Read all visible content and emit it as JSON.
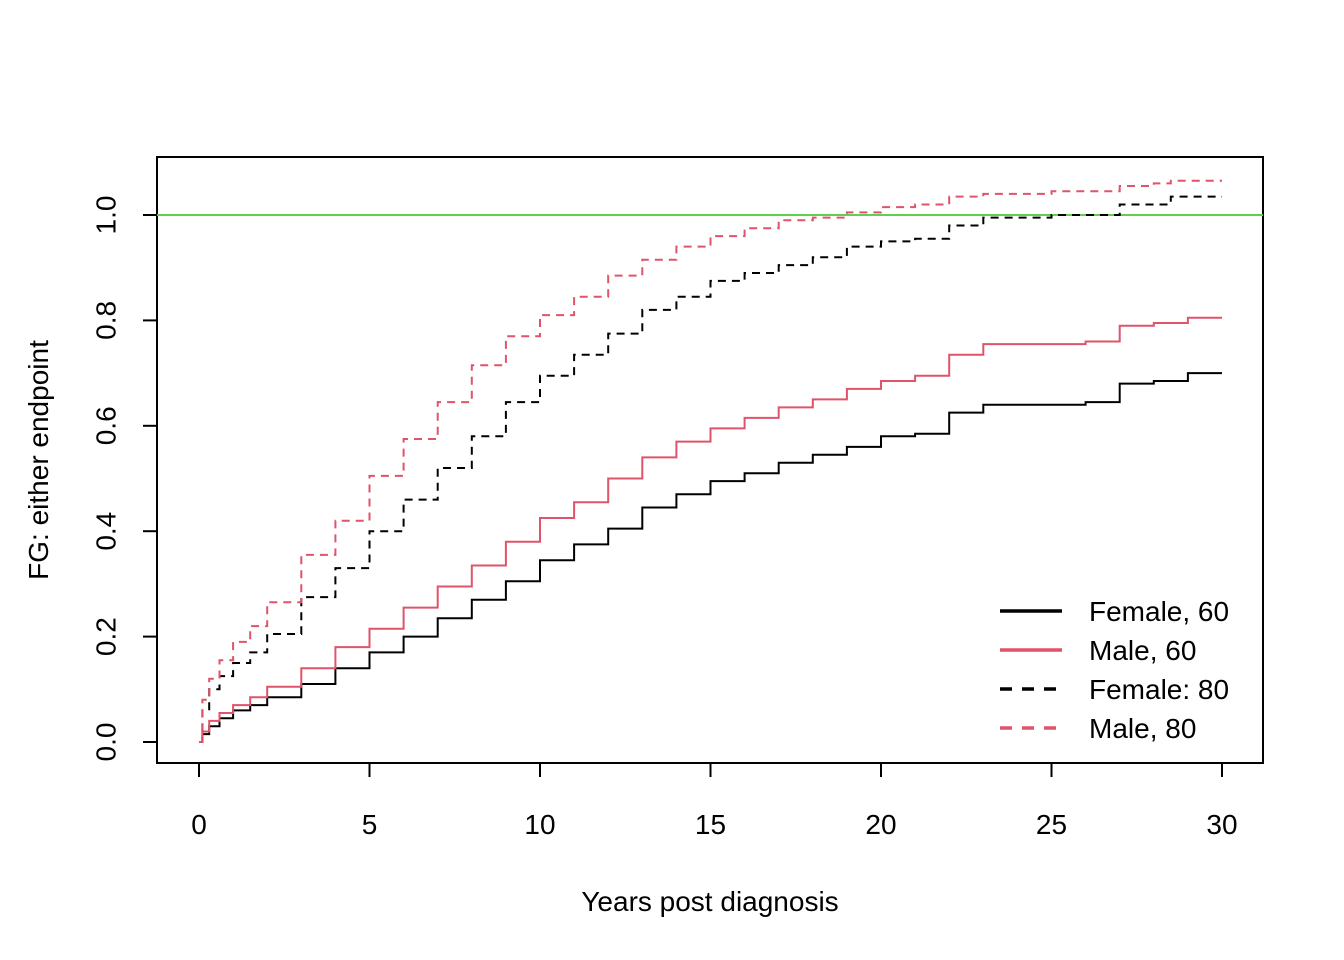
{
  "chart_data": {
    "type": "line",
    "xlabel": "Years post diagnosis",
    "ylabel": "FG: either endpoint",
    "xlim": [
      0,
      30
    ],
    "ylim": [
      0,
      1.1
    ],
    "xticks": [
      "0",
      "5",
      "10",
      "15",
      "20",
      "25",
      "30"
    ],
    "yticks": [
      "0.0",
      "0.2",
      "0.4",
      "0.6",
      "0.8",
      "1.0"
    ],
    "reference_line": {
      "y": 1.0,
      "color": "#61D04F"
    },
    "legend_position": "bottom-right",
    "series": [
      {
        "name": "Female, 60",
        "color": "#000000",
        "dash": "solid",
        "x": [
          0,
          0.1,
          0.3,
          0.6,
          1,
          1.5,
          2,
          3,
          4,
          5,
          6,
          7,
          8,
          9,
          10,
          11,
          12,
          13,
          14,
          15,
          16,
          17,
          18,
          19,
          20,
          21,
          22,
          23,
          24,
          25,
          26,
          27,
          28,
          29,
          30
        ],
        "y": [
          0,
          0.015,
          0.03,
          0.045,
          0.06,
          0.07,
          0.085,
          0.11,
          0.14,
          0.17,
          0.2,
          0.235,
          0.27,
          0.305,
          0.345,
          0.375,
          0.405,
          0.445,
          0.47,
          0.495,
          0.51,
          0.53,
          0.545,
          0.56,
          0.58,
          0.585,
          0.625,
          0.64,
          0.64,
          0.64,
          0.645,
          0.68,
          0.685,
          0.7,
          0.7
        ]
      },
      {
        "name": "Male, 60",
        "color": "#DF536B",
        "dash": "solid",
        "x": [
          0,
          0.1,
          0.3,
          0.6,
          1,
          1.5,
          2,
          3,
          4,
          5,
          6,
          7,
          8,
          9,
          10,
          11,
          12,
          13,
          14,
          15,
          16,
          17,
          18,
          19,
          20,
          21,
          22,
          23,
          24,
          25,
          26,
          27,
          28,
          29,
          30
        ],
        "y": [
          0,
          0.02,
          0.04,
          0.055,
          0.07,
          0.085,
          0.105,
          0.14,
          0.18,
          0.215,
          0.255,
          0.295,
          0.335,
          0.38,
          0.425,
          0.455,
          0.5,
          0.54,
          0.57,
          0.595,
          0.615,
          0.635,
          0.65,
          0.67,
          0.685,
          0.695,
          0.735,
          0.755,
          0.755,
          0.755,
          0.76,
          0.79,
          0.795,
          0.805,
          0.805
        ]
      },
      {
        "name": "Female: 80",
        "color": "#000000",
        "dash": "dashed",
        "x": [
          0,
          0.1,
          0.3,
          0.6,
          1,
          1.5,
          2,
          3,
          4,
          5,
          6,
          7,
          8,
          9,
          10,
          11,
          12,
          13,
          14,
          15,
          16,
          17,
          18,
          19,
          20,
          21,
          22,
          23,
          24,
          25,
          26,
          27,
          28,
          28.5,
          30
        ],
        "y": [
          0,
          0.06,
          0.1,
          0.125,
          0.15,
          0.17,
          0.205,
          0.275,
          0.33,
          0.4,
          0.46,
          0.52,
          0.58,
          0.645,
          0.695,
          0.735,
          0.775,
          0.82,
          0.845,
          0.875,
          0.89,
          0.905,
          0.92,
          0.94,
          0.95,
          0.955,
          0.98,
          0.995,
          0.995,
          1.0,
          1.0,
          1.02,
          1.02,
          1.035,
          1.035
        ]
      },
      {
        "name": "Male, 80",
        "color": "#DF536B",
        "dash": "dashed",
        "x": [
          0,
          0.1,
          0.3,
          0.6,
          1,
          1.5,
          2,
          3,
          4,
          5,
          6,
          7,
          8,
          9,
          10,
          11,
          12,
          13,
          14,
          15,
          16,
          17,
          18,
          19,
          20,
          21,
          22,
          23,
          24,
          25,
          26,
          27,
          28,
          28.5,
          30
        ],
        "y": [
          0,
          0.08,
          0.12,
          0.155,
          0.19,
          0.22,
          0.265,
          0.355,
          0.42,
          0.505,
          0.575,
          0.645,
          0.715,
          0.77,
          0.81,
          0.845,
          0.885,
          0.915,
          0.94,
          0.96,
          0.975,
          0.99,
          0.995,
          1.005,
          1.015,
          1.02,
          1.035,
          1.04,
          1.04,
          1.045,
          1.045,
          1.055,
          1.06,
          1.065,
          1.065
        ]
      }
    ]
  }
}
